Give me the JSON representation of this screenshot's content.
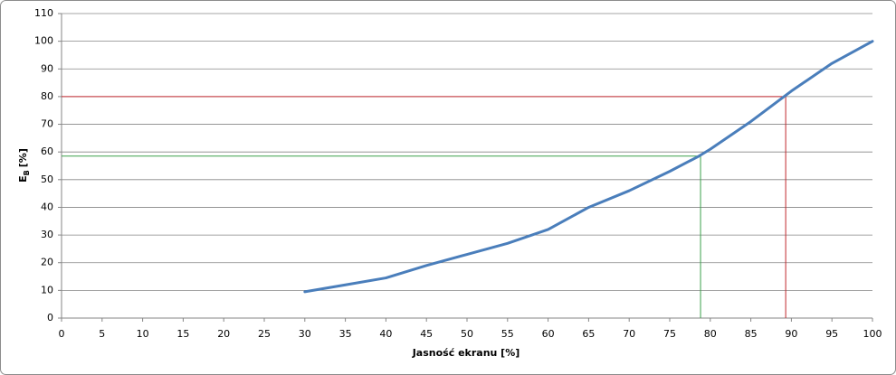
{
  "chart_data": {
    "type": "line",
    "xlabel": "Jasność ekranu [%]",
    "ylabel": {
      "main": "E",
      "sub": "B",
      "unit": "[%]"
    },
    "x": [
      30,
      35,
      40,
      45,
      50,
      55,
      60,
      65,
      70,
      75,
      78.6,
      80,
      85,
      90,
      95,
      100
    ],
    "series": [
      {
        "color": "#4a7ebb",
        "values": [
          9.5,
          12,
          14.5,
          19,
          23,
          27,
          32,
          40,
          46,
          53,
          58.5,
          61,
          71,
          82,
          92,
          100
        ]
      }
    ],
    "xlim": [
      0,
      100
    ],
    "xticks": [
      0,
      5,
      10,
      15,
      20,
      25,
      30,
      35,
      40,
      45,
      50,
      55,
      60,
      65,
      70,
      75,
      80,
      85,
      90,
      95,
      100
    ],
    "ylim": [
      0,
      110
    ],
    "yticks": [
      0,
      10,
      20,
      30,
      40,
      50,
      60,
      70,
      80,
      90,
      100,
      110
    ],
    "grid": true,
    "reference_lines": [
      {
        "x": 89.3,
        "y": 80,
        "color": "#c0272d"
      },
      {
        "x": 78.8,
        "y": 58.5,
        "color": "#3aa14a"
      }
    ]
  }
}
